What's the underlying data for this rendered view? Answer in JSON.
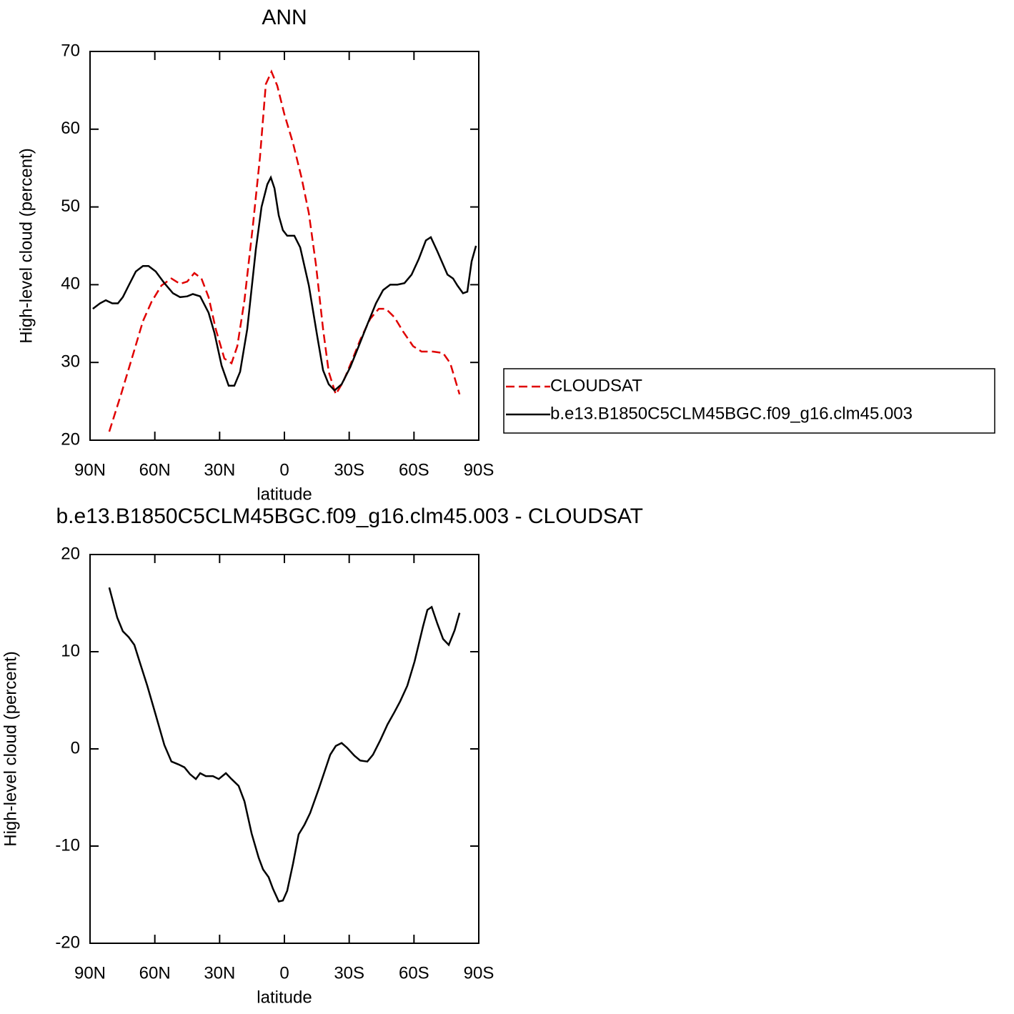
{
  "chart_data": [
    {
      "type": "line",
      "title": "ANN",
      "xlabel": "latitude",
      "ylabel": "High-level cloud (percent)",
      "xlim": [
        90,
        -90
      ],
      "xticks": [
        {
          "value": 90,
          "label": "90N"
        },
        {
          "value": 60,
          "label": "60N"
        },
        {
          "value": 30,
          "label": "30N"
        },
        0,
        {
          "value": -30,
          "label": "30S"
        },
        {
          "value": -60,
          "label": "60S"
        },
        {
          "value": -90,
          "label": "90S"
        }
      ],
      "ylim": [
        20,
        70
      ],
      "yticks": [
        20,
        30,
        40,
        50,
        60,
        70
      ],
      "legend": "right",
      "series": [
        {
          "name": "CLOUDSAT",
          "color": "#e00000",
          "linestyle": "dashed",
          "x": [
            81.1,
            75.4,
            70.1,
            65.5,
            61.5,
            56.9,
            52.3,
            48.3,
            45.0,
            41.7,
            38.4,
            35.1,
            31.8,
            27.8,
            24.5,
            21.8,
            18.5,
            14.6,
            11.3,
            8.6,
            6.0,
            3.3,
            0.0,
            -4.0,
            -7.9,
            -11.3,
            -14.6,
            -17.9,
            -20.5,
            -23.8,
            -27.2,
            -31.1,
            -35.1,
            -39.7,
            -43.7,
            -47.0,
            -51.0,
            -54.9,
            -59.6,
            -63.5,
            -68.8,
            -73.5,
            -76.8,
            -81.1
          ],
          "values": [
            21.1,
            26.1,
            31.0,
            35.3,
            37.8,
            39.9,
            40.8,
            40.1,
            40.4,
            41.5,
            40.8,
            38.4,
            34.3,
            30.5,
            29.9,
            32.1,
            38.0,
            47.6,
            56.4,
            65.8,
            67.4,
            65.6,
            61.9,
            58.2,
            53.8,
            49.2,
            42.6,
            34.3,
            28.8,
            25.9,
            27.5,
            30.1,
            32.9,
            35.6,
            36.9,
            36.9,
            35.8,
            34.0,
            32.1,
            31.4,
            31.4,
            31.2,
            29.9,
            25.9
          ]
        },
        {
          "name": "b.e13.B1850C5CLM45BGC.f09_g16.clm45.003",
          "color": "#000000",
          "linestyle": "solid",
          "x": [
            88.7,
            85.4,
            82.7,
            79.7,
            77.1,
            74.8,
            72.1,
            68.8,
            65.5,
            62.9,
            59.6,
            55.6,
            51.6,
            48.3,
            45.0,
            42.4,
            39.0,
            35.1,
            32.4,
            29.1,
            25.8,
            23.2,
            20.5,
            17.2,
            13.2,
            10.6,
            7.9,
            6.3,
            4.6,
            2.6,
            0.7,
            -1.3,
            -4.6,
            -7.3,
            -11.3,
            -15.2,
            -17.9,
            -20.5,
            -23.2,
            -26.5,
            -30.5,
            -34.4,
            -38.4,
            -42.4,
            -45.7,
            -49.0,
            -52.3,
            -55.6,
            -58.9,
            -62.2,
            -65.5,
            -67.8,
            -70.8,
            -75.5,
            -78.1,
            -80.1,
            -82.7,
            -84.7,
            -86.7,
            -88.7
          ],
          "values": [
            36.9,
            37.6,
            38.0,
            37.6,
            37.6,
            38.4,
            39.9,
            41.7,
            42.4,
            42.4,
            41.7,
            40.2,
            38.9,
            38.4,
            38.5,
            38.8,
            38.5,
            36.4,
            33.8,
            29.6,
            27.0,
            27.0,
            28.8,
            34.3,
            44.6,
            50.0,
            52.9,
            53.8,
            52.4,
            48.9,
            47.0,
            46.3,
            46.3,
            44.8,
            39.9,
            33.4,
            29.0,
            27.2,
            26.4,
            27.2,
            29.4,
            32.1,
            34.9,
            37.6,
            39.3,
            40.0,
            40.0,
            40.2,
            41.3,
            43.3,
            45.7,
            46.1,
            44.3,
            41.3,
            40.8,
            39.9,
            38.9,
            39.1,
            43.0,
            45.0
          ]
        }
      ]
    },
    {
      "type": "line",
      "title": "b.e13.B1850C5CLM45BGC.f09_g16.clm45.003 - CLOUDSAT",
      "xlabel": "latitude",
      "ylabel": "High-level cloud (percent)",
      "xlim": [
        90,
        -90
      ],
      "xticks": [
        {
          "value": 90,
          "label": "90N"
        },
        {
          "value": 60,
          "label": "60N"
        },
        {
          "value": 30,
          "label": "30N"
        },
        0,
        {
          "value": -30,
          "label": "30S"
        },
        {
          "value": -60,
          "label": "60S"
        },
        {
          "value": -90,
          "label": "90S"
        }
      ],
      "ylim": [
        -20,
        20
      ],
      "yticks": [
        -20,
        -10,
        0,
        10,
        20
      ],
      "color": "#000000",
      "x": [
        81.1,
        77.4,
        74.8,
        72.1,
        69.5,
        66.8,
        63.5,
        59.6,
        55.6,
        52.3,
        49.0,
        46.3,
        43.7,
        41.0,
        39.0,
        36.4,
        33.1,
        30.4,
        27.1,
        24.5,
        21.2,
        18.5,
        15.2,
        11.9,
        9.9,
        7.3,
        5.3,
        2.6,
        0.7,
        -1.3,
        -4.0,
        -6.6,
        -9.3,
        -11.9,
        -15.9,
        -18.5,
        -21.2,
        -23.8,
        -26.5,
        -29.1,
        -32.4,
        -35.1,
        -38.4,
        -41.0,
        -44.4,
        -47.7,
        -51.0,
        -53.6,
        -56.9,
        -60.3,
        -64.2,
        -66.2,
        -68.2,
        -70.8,
        -73.5,
        -76.1,
        -78.8,
        -81.1
      ],
      "values": [
        16.6,
        13.5,
        12.1,
        11.5,
        10.7,
        8.8,
        6.5,
        3.5,
        0.4,
        -1.3,
        -1.6,
        -1.9,
        -2.6,
        -3.1,
        -2.5,
        -2.8,
        -2.8,
        -3.1,
        -2.5,
        -3.1,
        -3.8,
        -5.4,
        -8.7,
        -11.2,
        -12.4,
        -13.2,
        -14.4,
        -15.7,
        -15.6,
        -14.6,
        -11.8,
        -8.8,
        -7.8,
        -6.6,
        -4.1,
        -2.4,
        -0.6,
        0.3,
        0.6,
        0.1,
        -0.7,
        -1.2,
        -1.3,
        -0.6,
        0.9,
        2.5,
        3.8,
        4.9,
        6.5,
        9.0,
        12.6,
        14.3,
        14.6,
        12.9,
        11.3,
        10.7,
        12.2,
        14.0
      ]
    }
  ]
}
